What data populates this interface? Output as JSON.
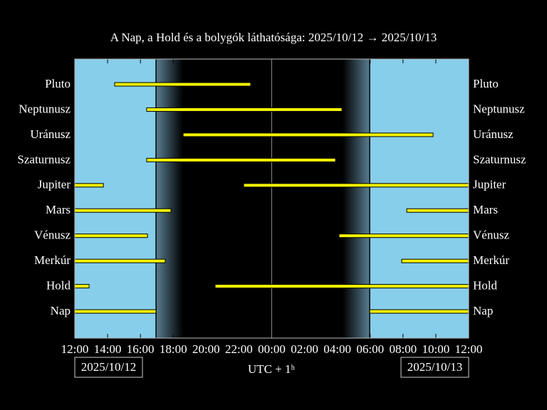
{
  "chart_data": {
    "type": "timeline",
    "title": "A Nap, a Hold és a bolygók láthatósága: 2025/10/12 → 2025/10/13",
    "xlabel": "UTC + 1ʰ",
    "start_date": "2025/10/12",
    "end_date": "2025/10/13",
    "xlim": [
      0,
      24
    ],
    "xticks": [
      {
        "value": 0,
        "label": "12:00"
      },
      {
        "value": 2,
        "label": "14:00"
      },
      {
        "value": 4,
        "label": "16:00"
      },
      {
        "value": 6,
        "label": "18:00"
      },
      {
        "value": 8,
        "label": "20:00"
      },
      {
        "value": 10,
        "label": "22:00"
      },
      {
        "value": 12,
        "label": "00:00"
      },
      {
        "value": 14,
        "label": "02:00"
      },
      {
        "value": 16,
        "label": "04:00"
      },
      {
        "value": 18,
        "label": "06:00"
      },
      {
        "value": 20,
        "label": "08:00"
      },
      {
        "value": 22,
        "label": "10:00"
      },
      {
        "value": 24,
        "label": "12:00"
      }
    ],
    "color": "#f5f500",
    "day_color": "#87ceeb",
    "rows": [
      {
        "name": "Pluto",
        "spans": [
          [
            2.43,
            10.72
          ]
        ]
      },
      {
        "name": "Neptunusz",
        "spans": [
          [
            4.38,
            16.28
          ]
        ]
      },
      {
        "name": "Uránusz",
        "spans": [
          [
            6.6,
            21.83
          ]
        ]
      },
      {
        "name": "Szaturnusz",
        "spans": [
          [
            4.38,
            15.89
          ]
        ]
      },
      {
        "name": "Jupiter",
        "spans": [
          [
            0,
            1.74
          ],
          [
            10.29,
            24
          ]
        ]
      },
      {
        "name": "Mars",
        "spans": [
          [
            0,
            5.86
          ],
          [
            20.23,
            24
          ]
        ]
      },
      {
        "name": "Vénusz",
        "spans": [
          [
            0,
            4.43
          ],
          [
            16.1,
            24
          ]
        ]
      },
      {
        "name": "Merkúr",
        "spans": [
          [
            0,
            5.51
          ],
          [
            19.92,
            24
          ]
        ]
      },
      {
        "name": "Hold",
        "spans": [
          [
            0,
            0.87
          ],
          [
            8.55,
            24
          ]
        ]
      },
      {
        "name": "Nap",
        "spans": [
          [
            0,
            4.95
          ],
          [
            17.97,
            24
          ]
        ]
      }
    ]
  }
}
